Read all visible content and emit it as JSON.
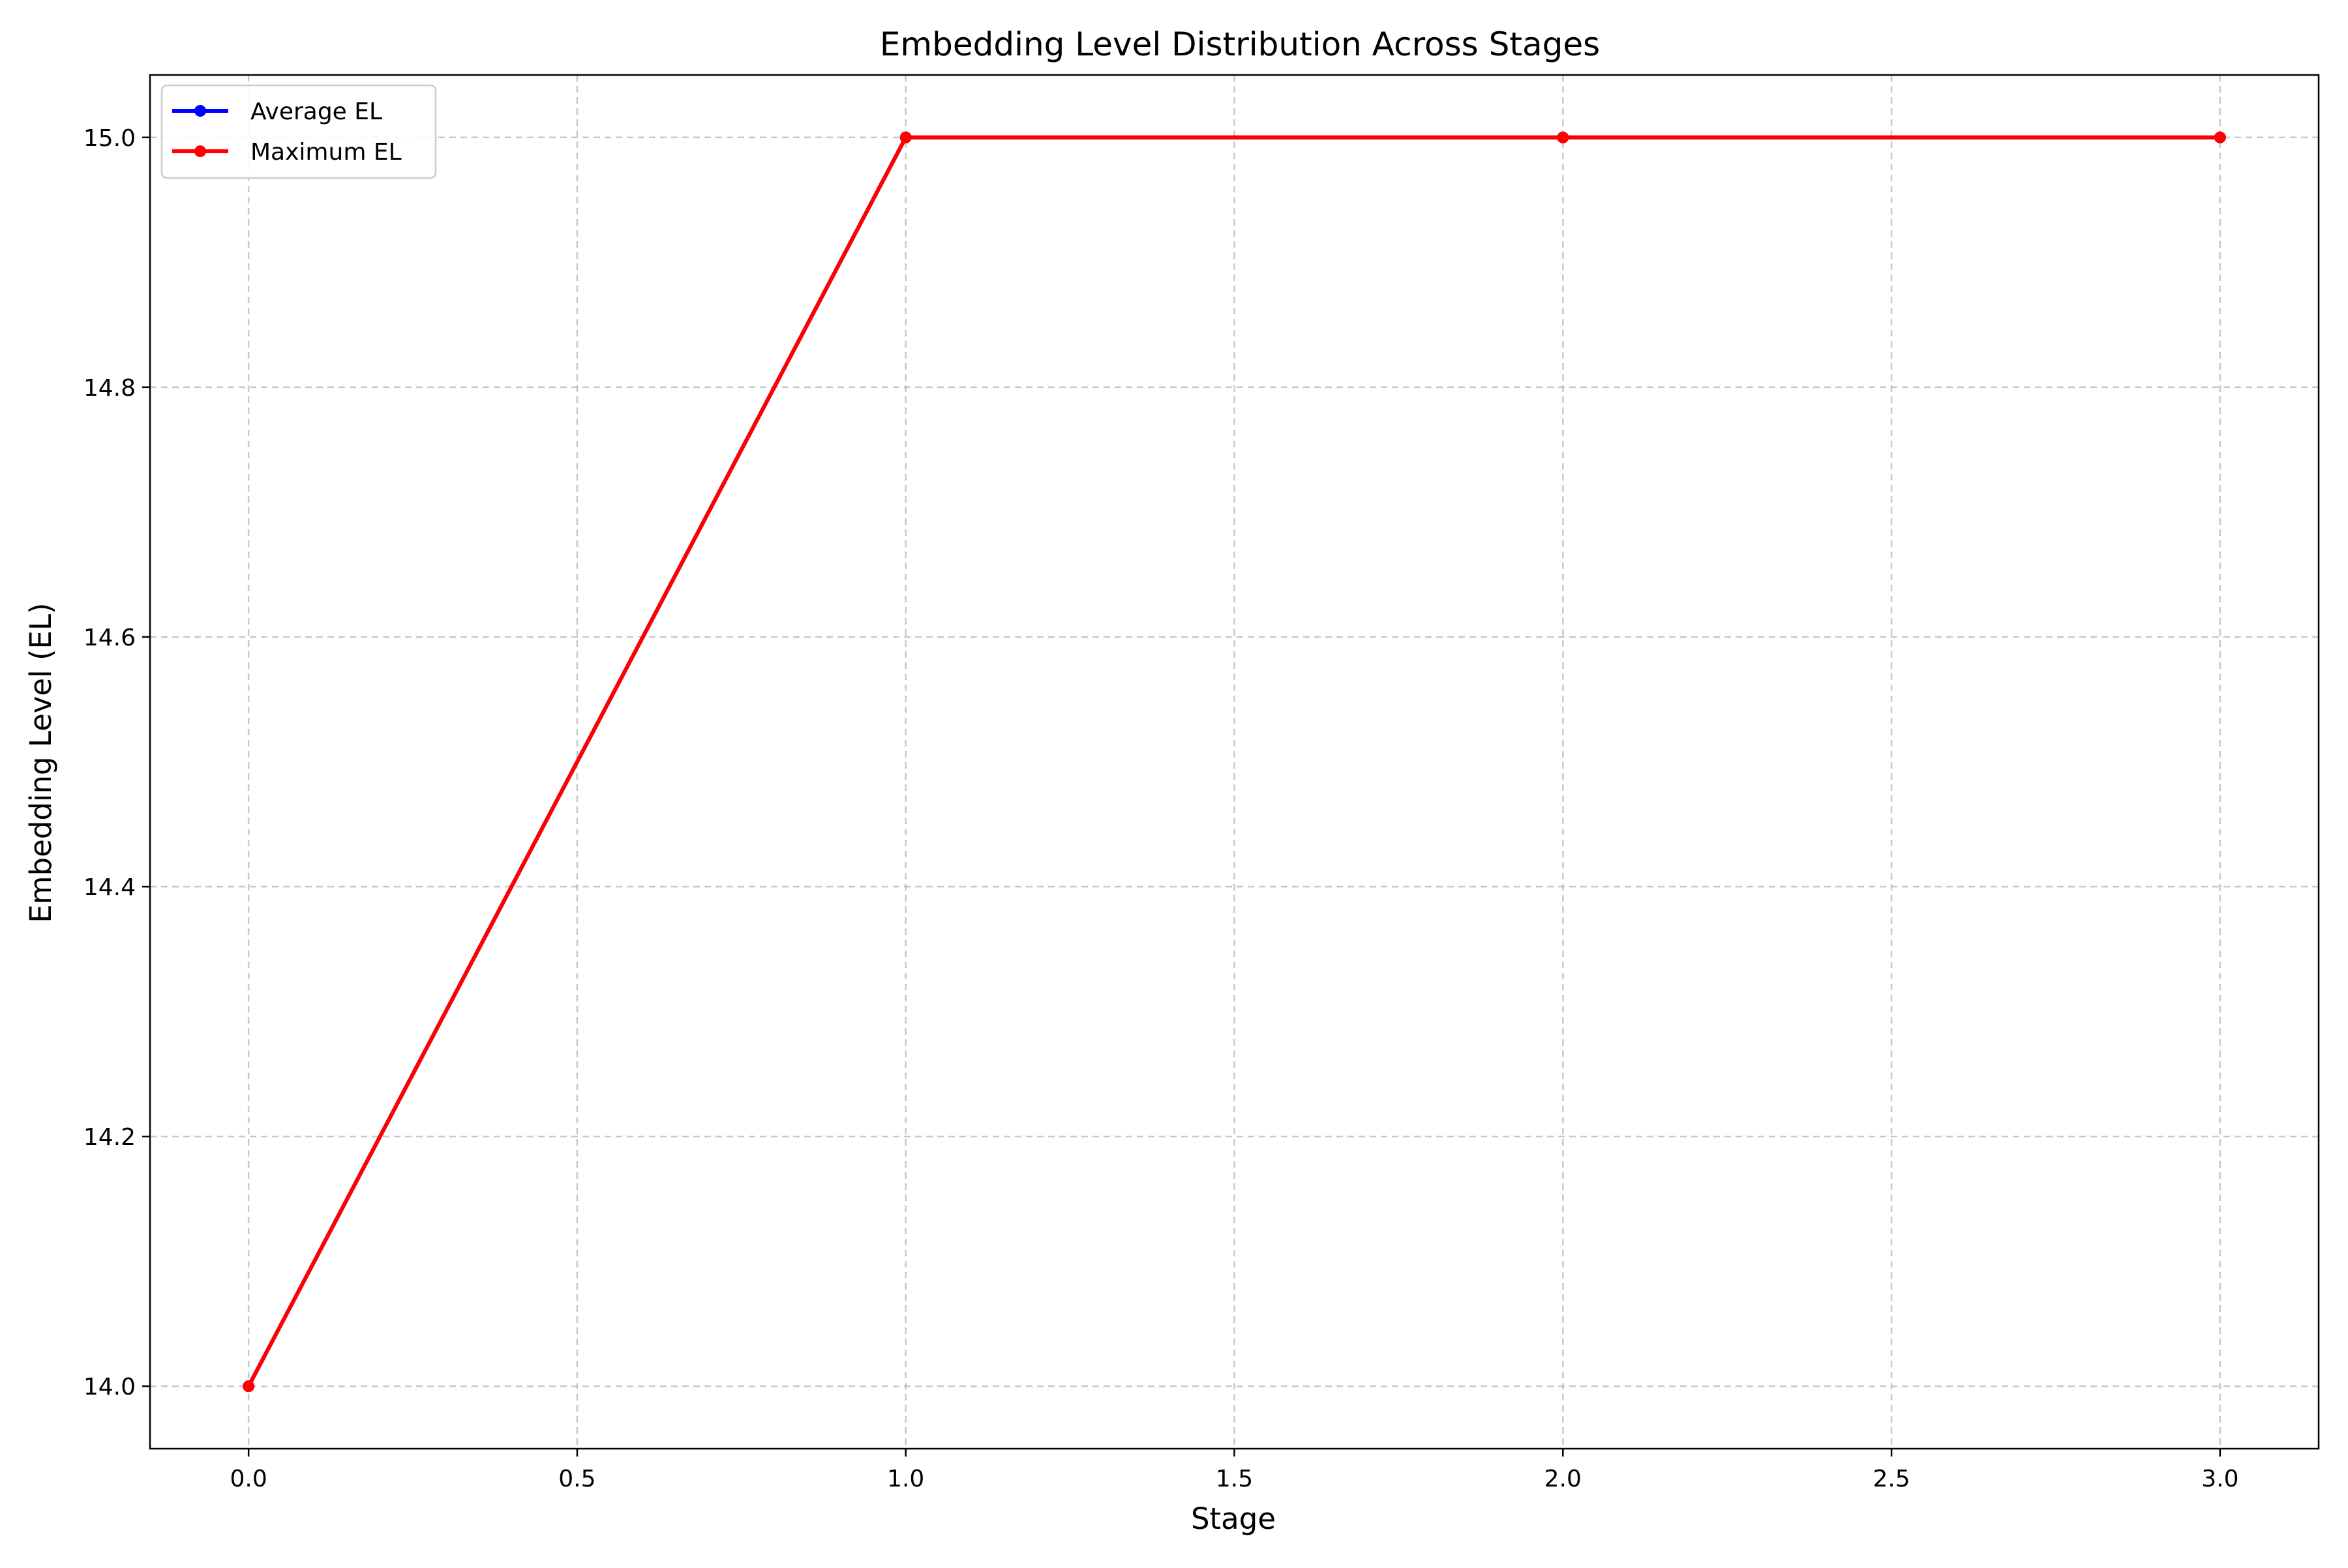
{
  "chart_data": {
    "type": "line",
    "title": "Embedding Level Distribution Across Stages",
    "xlabel": "Stage",
    "ylabel": "Embedding Level (EL)",
    "xlim": [
      -0.15,
      3.15
    ],
    "ylim": [
      13.95,
      15.05
    ],
    "xticks": [
      0.0,
      0.5,
      1.0,
      1.5,
      2.0,
      2.5,
      3.0
    ],
    "xtick_labels": [
      "0.0",
      "0.5",
      "1.0",
      "1.5",
      "2.0",
      "2.5",
      "3.0"
    ],
    "yticks": [
      14.0,
      14.2,
      14.4,
      14.6,
      14.8,
      15.0
    ],
    "ytick_labels": [
      "14.0",
      "14.2",
      "14.4",
      "14.6",
      "14.8",
      "15.0"
    ],
    "grid": true,
    "legend_position": "top-left",
    "series": [
      {
        "name": "Average EL",
        "color": "#0000ff",
        "x": [
          0,
          1,
          2,
          3
        ],
        "y": [
          14.0,
          15.0,
          15.0,
          15.0
        ]
      },
      {
        "name": "Maximum EL",
        "color": "#ff0000",
        "x": [
          0,
          1,
          2,
          3
        ],
        "y": [
          14.0,
          15.0,
          15.0,
          15.0
        ]
      }
    ]
  }
}
